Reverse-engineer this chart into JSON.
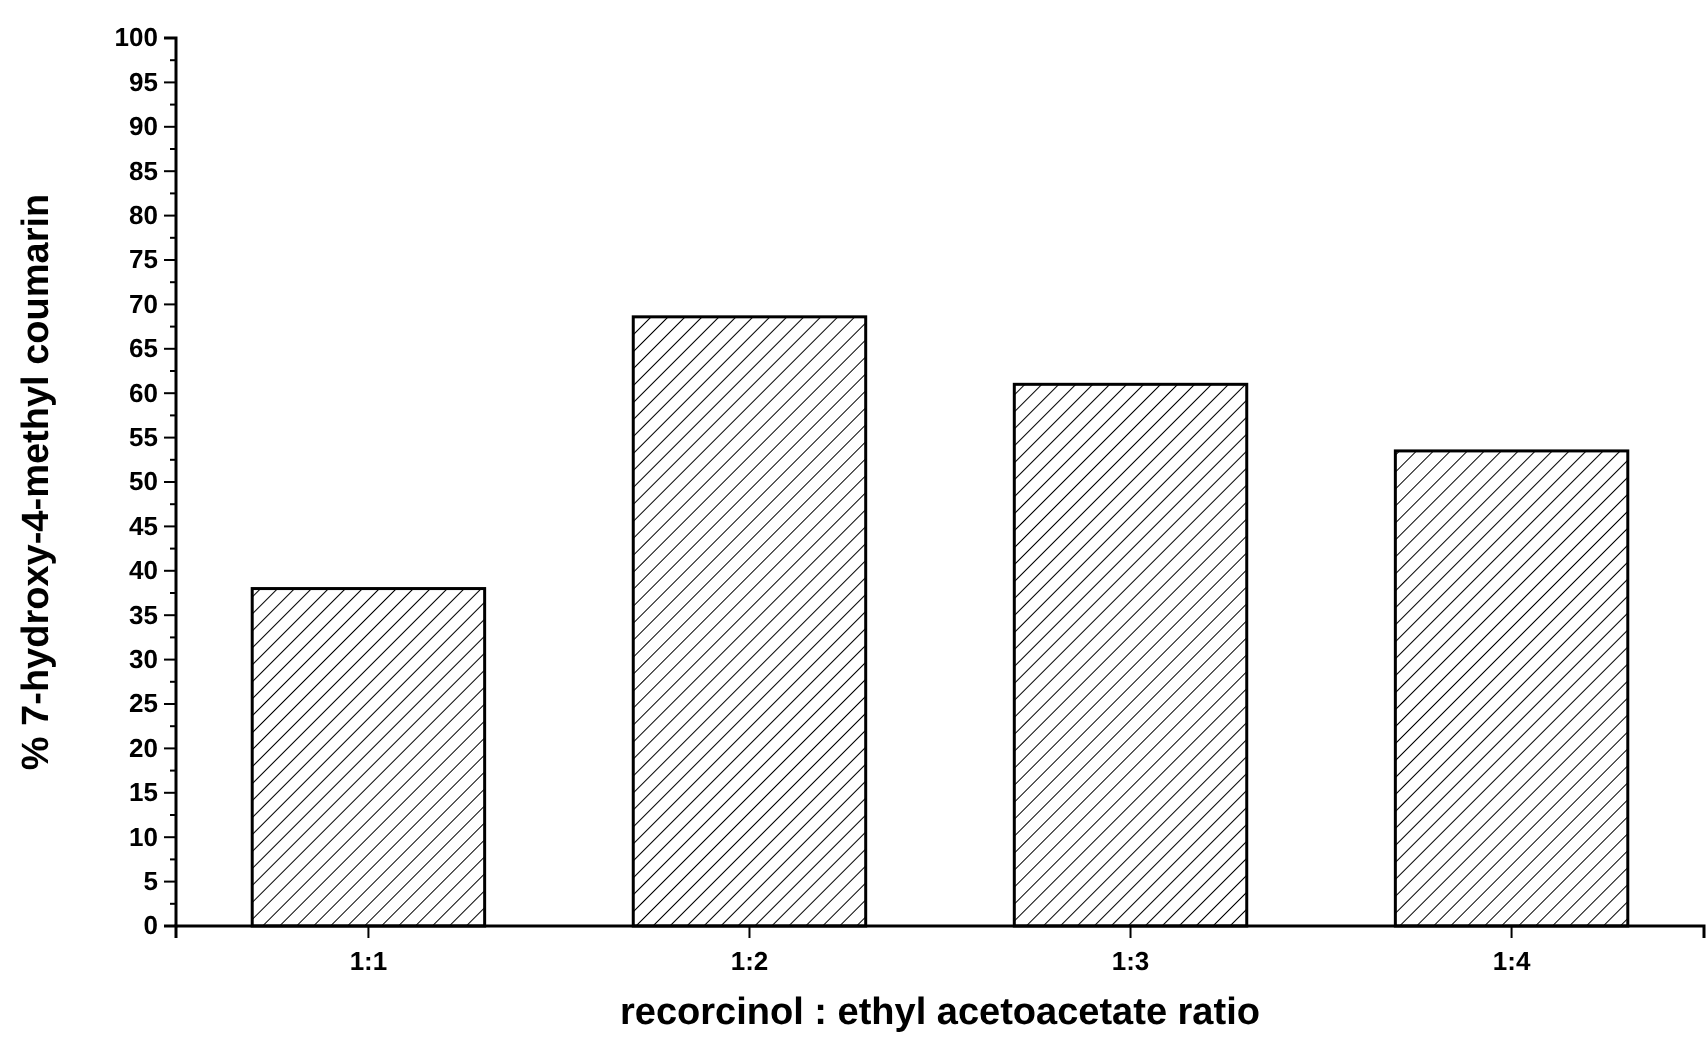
{
  "chart_data": {
    "type": "bar",
    "xlabel": "recorcinol : ethyl acetoacetate ratio",
    "ylabel": "% 7-hydroxy-4-methyl coumarin",
    "categories": [
      "1:1",
      "1:2",
      "1:3",
      "1:4"
    ],
    "values": [
      38,
      68.6,
      61,
      53.5
    ],
    "color": "#000000",
    "ylim": [
      0,
      100
    ],
    "yticks": [
      0,
      5,
      10,
      15,
      20,
      25,
      30,
      35,
      40,
      45,
      50,
      55,
      60,
      65,
      70,
      75,
      80,
      85,
      90,
      95,
      100
    ],
    "grid": false
  }
}
